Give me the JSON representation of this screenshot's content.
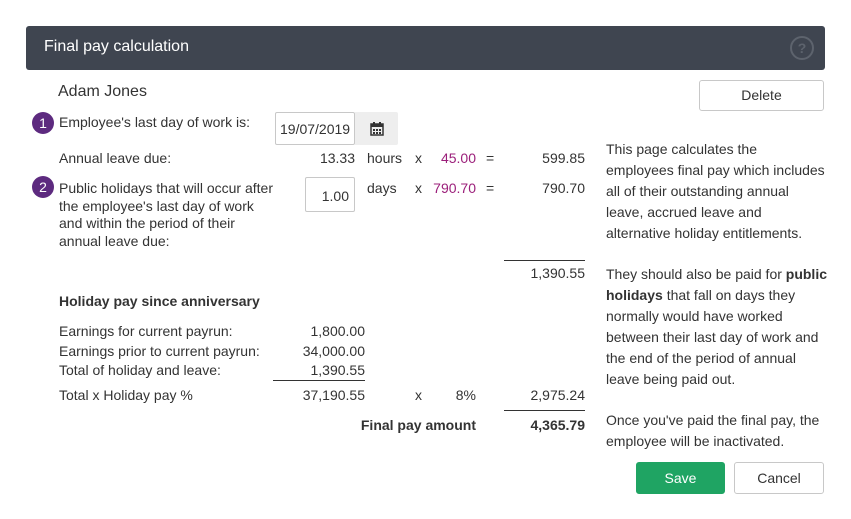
{
  "header": {
    "title": "Final pay calculation",
    "help_glyph": "?"
  },
  "employee": {
    "name": "Adam Jones"
  },
  "buttons": {
    "delete": "Delete",
    "save": "Save",
    "cancel": "Cancel"
  },
  "step1": {
    "num": "1",
    "label": "Employee's last day of work is:",
    "date_value": "19/07/2019"
  },
  "annual_leave": {
    "label": "Annual leave due:",
    "qty": "13.33",
    "unit": "hours",
    "x": "x",
    "rate": "45.00",
    "eq": "=",
    "total": "599.85"
  },
  "step2": {
    "num": "2",
    "label_lines": [
      "Public holidays that will occur after",
      "the employee's last day of work",
      "and within the period of their",
      "annual leave due:"
    ],
    "qty_value": "1.00",
    "unit": "days",
    "x": "x",
    "rate": "790.70",
    "eq": "=",
    "total": "790.70"
  },
  "subtotal": "1,390.55",
  "holiday_pay": {
    "heading": "Holiday pay since anniversary",
    "rows": [
      {
        "label": "Earnings for current payrun:",
        "value": "1,800.00"
      },
      {
        "label": "Earnings prior to current payrun:",
        "value": "34,000.00"
      },
      {
        "label": "Total of holiday and leave:",
        "value": "1,390.55"
      }
    ],
    "total_label": "Total x Holiday pay %",
    "total_value": "37,190.55",
    "x": "x",
    "percent": "8%",
    "result": "2,975.24"
  },
  "final": {
    "label": "Final pay amount",
    "value": "4,365.79"
  },
  "info": {
    "p1": "This page calculates the employees final pay which includes all of their outstanding annual leave, accrued leave and alternative holiday entitlements.",
    "p2_pre": "They should also be paid for",
    "p2_bold": "public holidays",
    "p2_post": "that fall on days they normally would have worked between their last day of work and the end of the period of annual leave being paid out.",
    "p3": "Once you've paid the final pay, the employee will be inactivated."
  }
}
